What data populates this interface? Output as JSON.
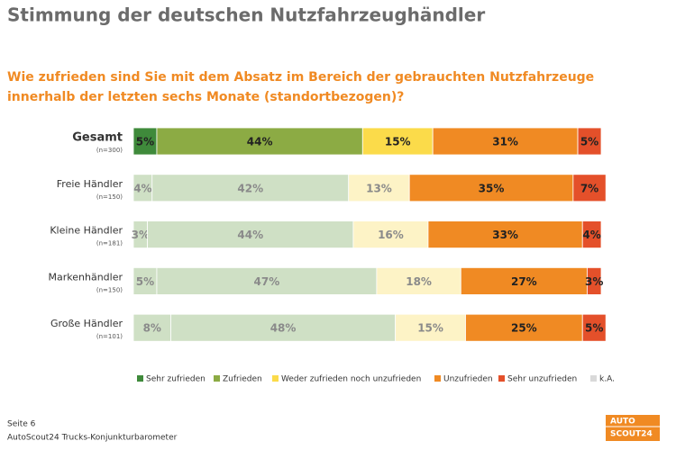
{
  "chart_data": {
    "type": "stacked-barh",
    "title": "Stimmung der deutschen Nutzfahrzeughändler",
    "subtitle": [
      "Wie zufrieden sind Sie mit dem Absatz im Bereich der gebrauchten Nutzfahrzeuge",
      "innerhalb der letzten sechs Monate (standortbezogen)?"
    ],
    "categories": [
      "Gesamt",
      "Freie Händler",
      "Kleine Händler",
      "Markenhändler",
      "Große Händler"
    ],
    "category_notes": [
      "(n=300)",
      "(n=150)",
      "(n=181)",
      "(n=150)",
      "(n=101)"
    ],
    "xlim": [
      0,
      100
    ],
    "series": [
      {
        "name": "Sehr zufrieden",
        "color": "#3f8a3b",
        "colors": [
          "#3f8a3b",
          "#cfe0c5",
          "#cfe0c5",
          "#cfe0c5",
          "#cfe0c5"
        ],
        "values": [
          5,
          4,
          3,
          5,
          8
        ],
        "value_labels": [
          "5%",
          "4%",
          "3%",
          "5%",
          "8%"
        ]
      },
      {
        "name": "Zufrieden",
        "color": "#8cab44",
        "colors": [
          "#8cab44",
          "#cfe0c5",
          "#cfe0c5",
          "#cfe0c5",
          "#cfe0c5"
        ],
        "values": [
          44,
          42,
          44,
          47,
          48
        ],
        "value_labels": [
          "44%",
          "42%",
          "44%",
          "47%",
          "48%"
        ]
      },
      {
        "name": "Weder zufrieden noch unzufrieden",
        "color": "#fbdb4a",
        "colors": [
          "#fbdb4a",
          "#fdf3c6",
          "#fdf3c6",
          "#fdf3c6",
          "#fdf3c6"
        ],
        "values": [
          15,
          13,
          16,
          18,
          15
        ],
        "value_labels": [
          "15%",
          "13%",
          "16%",
          "18%",
          "15%"
        ]
      },
      {
        "name": "Unzufrieden",
        "color": "#f08a23",
        "colors": [
          "#f08a23",
          "#f08a23",
          "#f08a23",
          "#f08a23",
          "#f08a23"
        ],
        "values": [
          31,
          35,
          33,
          27,
          25
        ],
        "value_labels": [
          "31%",
          "35%",
          "33%",
          "27%",
          "25%"
        ]
      },
      {
        "name": "Sehr unzufrieden",
        "color": "#e4502a",
        "colors": [
          "#e4502a",
          "#e4502a",
          "#e4502a",
          "#e4502a",
          "#e4502a"
        ],
        "values": [
          5,
          7,
          4,
          3,
          5
        ],
        "value_labels": [
          "5%",
          "7%",
          "4%",
          "3%",
          "5%"
        ]
      },
      {
        "name": "k.A.",
        "color": "#d9d9d9",
        "colors": [
          "#d9d9d9",
          "#d9d9d9",
          "#d9d9d9",
          "#d9d9d9",
          "#d9d9d9"
        ],
        "values": [
          0,
          0,
          0,
          0,
          0
        ]
      }
    ]
  },
  "footer": {
    "page": "Seite 6",
    "source": "AutoScout24 Trucks-Konjunkturbarometer"
  },
  "logo": [
    "AUTO",
    "SCOUT24"
  ]
}
